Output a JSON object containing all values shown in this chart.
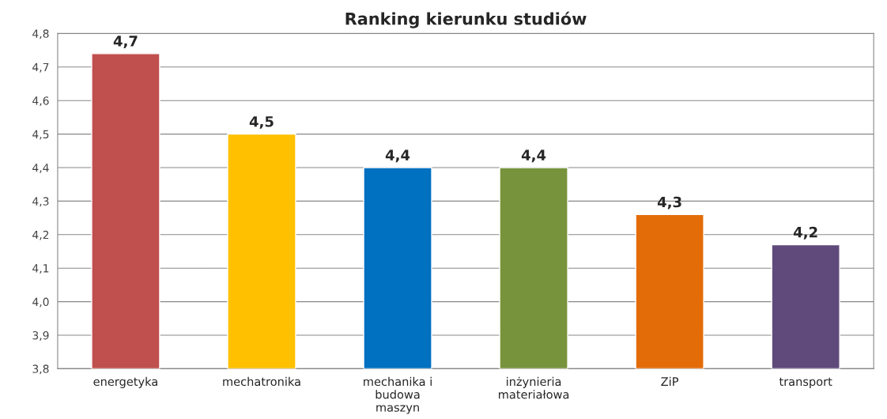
{
  "chart_data": {
    "type": "bar",
    "title": "Ranking kierunku studiów",
    "categories": [
      "energetyka",
      "mechatronika",
      "mechanika i\nbudowa\nmaszyn",
      "inżynieria\nmateriałowa",
      "ZiP",
      "transport"
    ],
    "values": [
      4.74,
      4.5,
      4.4,
      4.4,
      4.26,
      4.17
    ],
    "colors": [
      "#c0504d",
      "#ffc000",
      "#0070c0",
      "#77933c",
      "#e36c09",
      "#604a7b"
    ],
    "value_labels": [
      "4,7",
      "4,5",
      "4,4",
      "4,4",
      "4,3",
      "4,2"
    ],
    "ylim": [
      3.8,
      4.8
    ],
    "yticks": [
      {
        "value": 3.8,
        "label": "3,8"
      },
      {
        "value": 3.9,
        "label": "3,9"
      },
      {
        "value": 4.0,
        "label": "4,0"
      },
      {
        "value": 4.1,
        "label": "4,1"
      },
      {
        "value": 4.2,
        "label": "4,2"
      },
      {
        "value": 4.3,
        "label": "4,3"
      },
      {
        "value": 4.4,
        "label": "4,4"
      },
      {
        "value": 4.5,
        "label": "4,5"
      },
      {
        "value": 4.6,
        "label": "4,6"
      },
      {
        "value": 4.7,
        "label": "4,7"
      },
      {
        "value": 4.8,
        "label": "4,8"
      }
    ],
    "grid": "y"
  }
}
